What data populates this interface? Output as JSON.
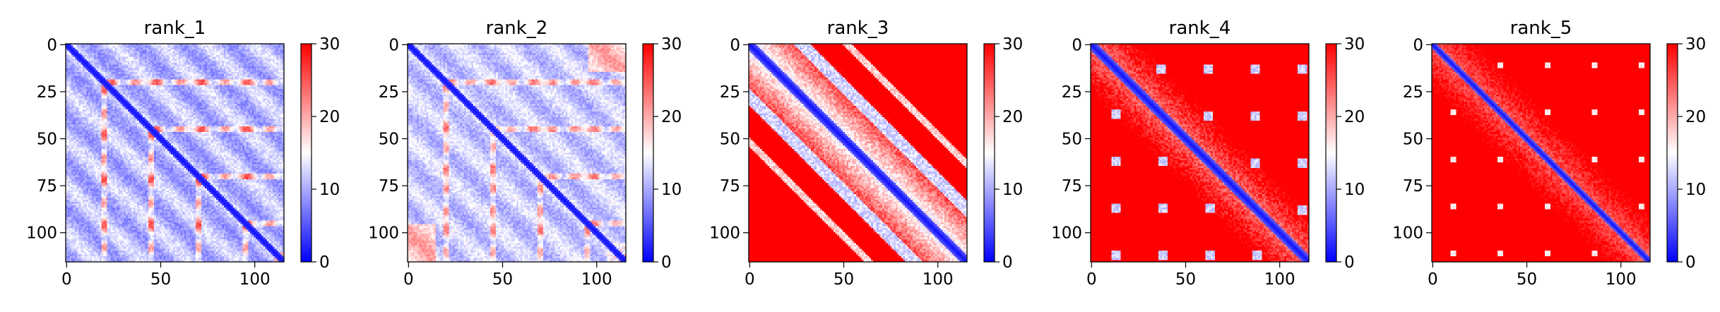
{
  "colormap": {
    "low": "#0000ff",
    "mid": "#ffffff",
    "high": "#ff0000"
  },
  "chart_data": [
    {
      "type": "heatmap",
      "title": "rank_1",
      "size": 116,
      "pattern": "rank_1",
      "xticks": [
        0,
        50,
        100
      ],
      "yticks": [
        0,
        25,
        50,
        75,
        100
      ],
      "xlabel": "",
      "ylabel": "",
      "colorbar": {
        "range": [
          0,
          30
        ],
        "ticks": [
          0,
          10,
          20,
          30
        ]
      }
    },
    {
      "type": "heatmap",
      "title": "rank_2",
      "size": 116,
      "pattern": "rank_2",
      "xticks": [
        0,
        50,
        100
      ],
      "yticks": [
        0,
        25,
        50,
        75,
        100
      ],
      "xlabel": "",
      "ylabel": "",
      "colorbar": {
        "range": [
          0,
          30
        ],
        "ticks": [
          0,
          10,
          20,
          30
        ]
      }
    },
    {
      "type": "heatmap",
      "title": "rank_3",
      "size": 116,
      "pattern": "rank_3",
      "xticks": [
        0,
        50,
        100
      ],
      "yticks": [
        0,
        25,
        50,
        75,
        100
      ],
      "xlabel": "",
      "ylabel": "",
      "colorbar": {
        "range": [
          0,
          30
        ],
        "ticks": [
          0,
          10,
          20,
          30
        ]
      }
    },
    {
      "type": "heatmap",
      "title": "rank_4",
      "size": 116,
      "pattern": "rank_4",
      "xticks": [
        0,
        50,
        100
      ],
      "yticks": [
        0,
        25,
        50,
        75,
        100
      ],
      "xlabel": "",
      "ylabel": "",
      "colorbar": {
        "range": [
          0,
          30
        ],
        "ticks": [
          0,
          10,
          20,
          30
        ]
      }
    },
    {
      "type": "heatmap",
      "title": "rank_5",
      "size": 116,
      "pattern": "rank_5",
      "xticks": [
        0,
        50,
        100
      ],
      "yticks": [
        0,
        25,
        50,
        75,
        100
      ],
      "xlabel": "",
      "ylabel": "",
      "colorbar": {
        "range": [
          0,
          30
        ],
        "ticks": [
          0,
          10,
          20,
          30
        ]
      }
    }
  ]
}
